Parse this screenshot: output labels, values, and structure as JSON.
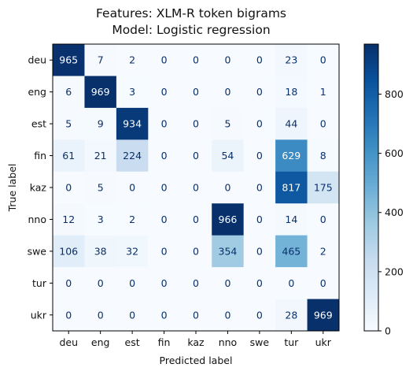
{
  "chart_data": {
    "type": "heatmap",
    "title": [
      "Features: XLM-R token bigrams",
      "Model: Logistic regression"
    ],
    "xlabel": "Predicted label",
    "ylabel": "True label",
    "x_categories": [
      "deu",
      "eng",
      "est",
      "fin",
      "kaz",
      "nno",
      "swe",
      "tur",
      "ukr"
    ],
    "y_categories": [
      "deu",
      "eng",
      "est",
      "fin",
      "kaz",
      "nno",
      "swe",
      "tur",
      "ukr"
    ],
    "values": [
      [
        965,
        7,
        2,
        0,
        0,
        0,
        0,
        23,
        0
      ],
      [
        6,
        969,
        3,
        0,
        0,
        0,
        0,
        18,
        1
      ],
      [
        5,
        9,
        934,
        0,
        0,
        5,
        0,
        44,
        0
      ],
      [
        61,
        21,
        224,
        0,
        0,
        54,
        0,
        629,
        8
      ],
      [
        0,
        5,
        0,
        0,
        0,
        0,
        0,
        817,
        175
      ],
      [
        12,
        3,
        2,
        0,
        0,
        966,
        0,
        14,
        0
      ],
      [
        106,
        38,
        32,
        0,
        0,
        354,
        0,
        465,
        2
      ],
      [
        0,
        0,
        0,
        0,
        0,
        0,
        0,
        0,
        0
      ],
      [
        0,
        0,
        0,
        0,
        0,
        0,
        0,
        28,
        969
      ]
    ],
    "colormap": "Blues",
    "value_range": [
      0,
      969
    ],
    "colorbar_ticks": [
      "0",
      "200",
      "400",
      "600",
      "800"
    ],
    "colorbar_tick_values": [
      0,
      200,
      400,
      600,
      800
    ]
  }
}
